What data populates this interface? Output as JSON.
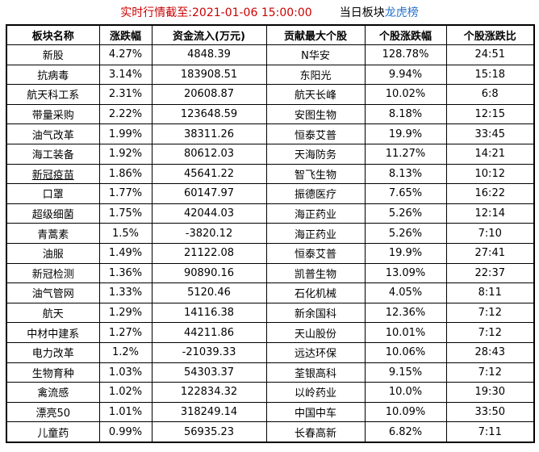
{
  "title": {
    "timestamp": "实时行情截至:2021-01-06 15:00:00",
    "board_prefix": "当日板块",
    "board_link": "龙虎榜"
  },
  "colors": {
    "timestamp_red": "#cc0000",
    "link_blue": "#1c5fa8",
    "board_link_blue": "#2470cc",
    "grid_black": "#000000"
  },
  "table": {
    "columns": [
      {
        "key": "sector",
        "label": "板块名称",
        "blue": false,
        "sortable": false
      },
      {
        "key": "change",
        "label": "涨跌幅",
        "blue": true,
        "sortable": true
      },
      {
        "key": "inflow",
        "label": "资金流入(万元)",
        "blue": true,
        "sortable": true
      },
      {
        "key": "stock",
        "label": "贡献最大个股",
        "blue": false,
        "sortable": false
      },
      {
        "key": "stock_change",
        "label": "个股涨跌幅",
        "blue": false,
        "sortable": false
      },
      {
        "key": "ratio",
        "label": "个股涨跌比",
        "blue": false,
        "sortable": false
      }
    ],
    "rows": [
      {
        "sector": "新股",
        "change": "4.27%",
        "inflow": "4848.39",
        "stock": "N华安",
        "stock_change": "128.78%",
        "ratio": "24:51"
      },
      {
        "sector": "抗病毒",
        "change": "3.14%",
        "inflow": "183908.51",
        "stock": "东阳光",
        "stock_change": "9.94%",
        "ratio": "15:18"
      },
      {
        "sector": "航天科工系",
        "change": "2.31%",
        "inflow": "20608.87",
        "stock": "航天长峰",
        "stock_change": "10.02%",
        "ratio": "6:8"
      },
      {
        "sector": "带量采购",
        "change": "2.22%",
        "inflow": "123648.59",
        "stock": "安图生物",
        "stock_change": "8.18%",
        "ratio": "12:15"
      },
      {
        "sector": "油气改革",
        "change": "1.99%",
        "inflow": "38311.26",
        "stock": "恒泰艾普",
        "stock_change": "19.9%",
        "ratio": "33:45"
      },
      {
        "sector": "海工装备",
        "change": "1.92%",
        "inflow": "80612.03",
        "stock": "天海防务",
        "stock_change": "11.27%",
        "ratio": "14:21"
      },
      {
        "sector": "新冠疫苗",
        "change": "1.86%",
        "inflow": "45641.22",
        "stock": "智飞生物",
        "stock_change": "8.13%",
        "ratio": "10:12",
        "sector_underlined": true
      },
      {
        "sector": "口罩",
        "change": "1.77%",
        "inflow": "60147.97",
        "stock": "振德医疗",
        "stock_change": "7.65%",
        "ratio": "16:22"
      },
      {
        "sector": "超级细菌",
        "change": "1.75%",
        "inflow": "42044.03",
        "stock": "海正药业",
        "stock_change": "5.26%",
        "ratio": "12:14"
      },
      {
        "sector": "青蒿素",
        "change": "1.5%",
        "inflow": "-3820.12",
        "stock": "海正药业",
        "stock_change": "5.26%",
        "ratio": "7:10"
      },
      {
        "sector": "油服",
        "change": "1.49%",
        "inflow": "21122.08",
        "stock": "恒泰艾普",
        "stock_change": "19.9%",
        "ratio": "27:41"
      },
      {
        "sector": "新冠检测",
        "change": "1.36%",
        "inflow": "90890.16",
        "stock": "凯普生物",
        "stock_change": "13.09%",
        "ratio": "22:37"
      },
      {
        "sector": "油气管网",
        "change": "1.33%",
        "inflow": "5120.46",
        "stock": "石化机械",
        "stock_change": "4.05%",
        "ratio": "8:11"
      },
      {
        "sector": "航天",
        "change": "1.29%",
        "inflow": "14116.38",
        "stock": "新余国科",
        "stock_change": "12.36%",
        "ratio": "7:12"
      },
      {
        "sector": "中材中建系",
        "change": "1.27%",
        "inflow": "44211.86",
        "stock": "天山股份",
        "stock_change": "10.01%",
        "ratio": "7:12"
      },
      {
        "sector": "电力改革",
        "change": "1.2%",
        "inflow": "-21039.33",
        "stock": "远达环保",
        "stock_change": "10.06%",
        "ratio": "28:43"
      },
      {
        "sector": "生物育种",
        "change": "1.03%",
        "inflow": "54303.37",
        "stock": "荃银高科",
        "stock_change": "9.15%",
        "ratio": "7:12"
      },
      {
        "sector": "禽流感",
        "change": "1.02%",
        "inflow": "122834.32",
        "stock": "以岭药业",
        "stock_change": "10.0%",
        "ratio": "19:30"
      },
      {
        "sector": "漂亮50",
        "change": "1.01%",
        "inflow": "318249.14",
        "stock": "中国中车",
        "stock_change": "10.09%",
        "ratio": "33:50"
      },
      {
        "sector": "儿童药",
        "change": "0.99%",
        "inflow": "56935.23",
        "stock": "长春高新",
        "stock_change": "6.82%",
        "ratio": "7:11"
      }
    ]
  }
}
